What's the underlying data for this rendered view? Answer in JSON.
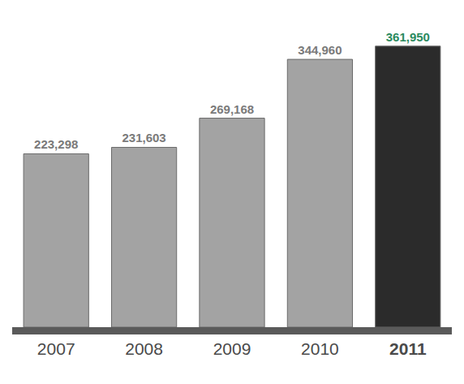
{
  "chart_data": {
    "type": "bar",
    "categories": [
      "2007",
      "2008",
      "2009",
      "2010",
      "2011"
    ],
    "values": [
      223298,
      231603,
      269168,
      344960,
      361950
    ],
    "value_labels": [
      "223,298",
      "231,603",
      "269,168",
      "344,960",
      "361,950"
    ],
    "colors": [
      "#a3a3a3",
      "#a3a3a3",
      "#a3a3a3",
      "#a3a3a3",
      "#2b2b2b"
    ],
    "ylim": [
      0,
      390000
    ],
    "data_labels": true,
    "tick_labels": "x",
    "grid": false
  }
}
